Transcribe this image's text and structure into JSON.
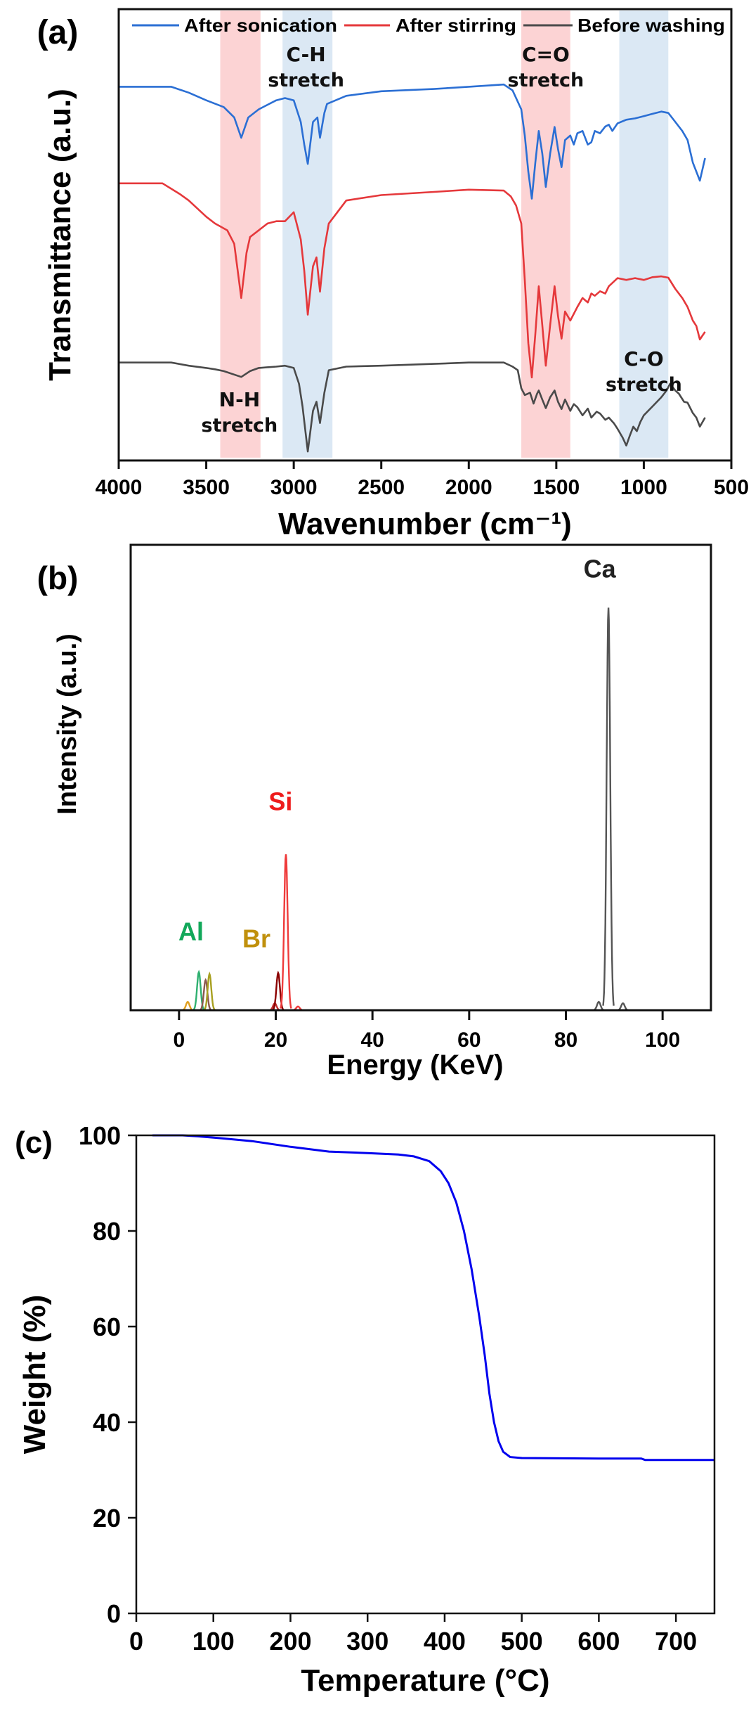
{
  "chart_data": [
    {
      "panel_label": "(a)",
      "type": "line",
      "xlabel": "Wavenumber (cm⁻¹)",
      "ylabel": "Transmittance (a.u.)",
      "xlim": [
        4000,
        500
      ],
      "x_reversed": true,
      "ylim": [
        0,
        100
      ],
      "xticks": [
        4000,
        3500,
        3000,
        2500,
        2000,
        1500,
        1000,
        500
      ],
      "yticks_shown": false,
      "legend_placement": "top",
      "series": [
        {
          "name": "After sonication",
          "color": "#2b6fd4",
          "points": [
            [
              4000,
              82.8
            ],
            [
              3700,
              82.8
            ],
            [
              3600,
              81.5
            ],
            [
              3500,
              79.8
            ],
            [
              3400,
              78.3
            ],
            [
              3340,
              76
            ],
            [
              3300,
              71.5
            ],
            [
              3260,
              76
            ],
            [
              3200,
              77.8
            ],
            [
              3100,
              79.8
            ],
            [
              3050,
              80.3
            ],
            [
              3000,
              79.8
            ],
            [
              2960,
              75
            ],
            [
              2940,
              70
            ],
            [
              2920,
              65.7
            ],
            [
              2890,
              75
            ],
            [
              2865,
              76
            ],
            [
              2850,
              71.5
            ],
            [
              2825,
              77
            ],
            [
              2810,
              79
            ],
            [
              2700,
              80.8
            ],
            [
              2500,
              81.8
            ],
            [
              2200,
              82.3
            ],
            [
              2000,
              82.8
            ],
            [
              1800,
              83.3
            ],
            [
              1750,
              82
            ],
            [
              1700,
              77.8
            ],
            [
              1680,
              72
            ],
            [
              1660,
              64
            ],
            [
              1640,
              58
            ],
            [
              1620,
              66
            ],
            [
              1600,
              73
            ],
            [
              1580,
              68
            ],
            [
              1560,
              60.6
            ],
            [
              1535,
              68
            ],
            [
              1510,
              73.9
            ],
            [
              1490,
              69
            ],
            [
              1470,
              65
            ],
            [
              1450,
              71
            ],
            [
              1420,
              72
            ],
            [
              1400,
              70
            ],
            [
              1380,
              72.5
            ],
            [
              1350,
              73
            ],
            [
              1320,
              70
            ],
            [
              1300,
              70.5
            ],
            [
              1280,
              73
            ],
            [
              1250,
              72.5
            ],
            [
              1220,
              74
            ],
            [
              1200,
              74.4
            ],
            [
              1180,
              73
            ],
            [
              1150,
              74.7
            ],
            [
              1100,
              75.5
            ],
            [
              1050,
              75.8
            ],
            [
              1000,
              76.3
            ],
            [
              950,
              76.8
            ],
            [
              900,
              77.3
            ],
            [
              860,
              77
            ],
            [
              820,
              75
            ],
            [
              780,
              73
            ],
            [
              750,
              71
            ],
            [
              720,
              66
            ],
            [
              700,
              64
            ],
            [
              680,
              62
            ],
            [
              650,
              67
            ]
          ]
        },
        {
          "name": "After stirring",
          "color": "#e5383b",
          "points": [
            [
              4000,
              61.4
            ],
            [
              3750,
              61.4
            ],
            [
              3650,
              59
            ],
            [
              3600,
              57.6
            ],
            [
              3500,
              54
            ],
            [
              3450,
              52.5
            ],
            [
              3380,
              51
            ],
            [
              3340,
              48
            ],
            [
              3300,
              36
            ],
            [
              3270,
              46
            ],
            [
              3250,
              49.5
            ],
            [
              3150,
              52.5
            ],
            [
              3100,
              53
            ],
            [
              3050,
              53
            ],
            [
              3000,
              55
            ],
            [
              2960,
              49
            ],
            [
              2940,
              42
            ],
            [
              2920,
              32.3
            ],
            [
              2890,
              43
            ],
            [
              2870,
              45
            ],
            [
              2850,
              37.4
            ],
            [
              2825,
              47
            ],
            [
              2800,
              52.5
            ],
            [
              2700,
              57.6
            ],
            [
              2500,
              58.8
            ],
            [
              2200,
              59.5
            ],
            [
              2000,
              60
            ],
            [
              1800,
              59.8
            ],
            [
              1760,
              58.5
            ],
            [
              1730,
              56.5
            ],
            [
              1700,
              52.5
            ],
            [
              1680,
              40
            ],
            [
              1660,
              26
            ],
            [
              1640,
              18.4
            ],
            [
              1620,
              28
            ],
            [
              1600,
              38.6
            ],
            [
              1580,
              30
            ],
            [
              1560,
              21
            ],
            [
              1535,
              30
            ],
            [
              1510,
              38.6
            ],
            [
              1490,
              32
            ],
            [
              1470,
              27
            ],
            [
              1450,
              33
            ],
            [
              1420,
              31
            ],
            [
              1400,
              32.5
            ],
            [
              1380,
              34
            ],
            [
              1350,
              36
            ],
            [
              1320,
              35
            ],
            [
              1300,
              37
            ],
            [
              1280,
              36.5
            ],
            [
              1250,
              37.5
            ],
            [
              1220,
              37
            ],
            [
              1200,
              38.6
            ],
            [
              1150,
              40.4
            ],
            [
              1100,
              40
            ],
            [
              1050,
              40.4
            ],
            [
              1000,
              40
            ],
            [
              950,
              40.6
            ],
            [
              900,
              40.8
            ],
            [
              860,
              40.5
            ],
            [
              820,
              38
            ],
            [
              780,
              36
            ],
            [
              750,
              34
            ],
            [
              720,
              31
            ],
            [
              700,
              29.8
            ],
            [
              680,
              26.8
            ],
            [
              650,
              28.5
            ]
          ]
        },
        {
          "name": "Before washing",
          "color": "#4a4a4a",
          "points": [
            [
              4000,
              21.7
            ],
            [
              3700,
              21.7
            ],
            [
              3600,
              21
            ],
            [
              3500,
              20.5
            ],
            [
              3450,
              20.2
            ],
            [
              3400,
              19.8
            ],
            [
              3300,
              18.5
            ],
            [
              3250,
              19.8
            ],
            [
              3200,
              20.5
            ],
            [
              3100,
              20.8
            ],
            [
              3050,
              21
            ],
            [
              3000,
              20.5
            ],
            [
              2970,
              17
            ],
            [
              2950,
              12
            ],
            [
              2920,
              2
            ],
            [
              2890,
              11
            ],
            [
              2870,
              13
            ],
            [
              2850,
              8.3
            ],
            [
              2825,
              15
            ],
            [
              2800,
              20
            ],
            [
              2700,
              20.8
            ],
            [
              2500,
              21
            ],
            [
              2200,
              21.4
            ],
            [
              2000,
              21.7
            ],
            [
              1800,
              21.7
            ],
            [
              1750,
              20.8
            ],
            [
              1720,
              20
            ],
            [
              1700,
              16
            ],
            [
              1680,
              14.5
            ],
            [
              1650,
              15
            ],
            [
              1630,
              12.6
            ],
            [
              1610,
              14.8
            ],
            [
              1600,
              15.5
            ],
            [
              1580,
              13.5
            ],
            [
              1560,
              11.6
            ],
            [
              1535,
              14
            ],
            [
              1510,
              15.5
            ],
            [
              1490,
              13
            ],
            [
              1470,
              11.4
            ],
            [
              1450,
              13.5
            ],
            [
              1420,
              11
            ],
            [
              1400,
              12.5
            ],
            [
              1380,
              11.8
            ],
            [
              1350,
              10
            ],
            [
              1320,
              11.5
            ],
            [
              1300,
              9.5
            ],
            [
              1270,
              10.8
            ],
            [
              1250,
              10.4
            ],
            [
              1220,
              9
            ],
            [
              1200,
              9.5
            ],
            [
              1170,
              8.2
            ],
            [
              1150,
              7
            ],
            [
              1120,
              5
            ],
            [
              1100,
              3.3
            ],
            [
              1080,
              5.5
            ],
            [
              1060,
              7.5
            ],
            [
              1040,
              6.5
            ],
            [
              1020,
              8.5
            ],
            [
              1000,
              10
            ],
            [
              950,
              12
            ],
            [
              900,
              14
            ],
            [
              870,
              15.5
            ],
            [
              850,
              17
            ],
            [
              820,
              15.5
            ],
            [
              800,
              14.8
            ],
            [
              770,
              13
            ],
            [
              750,
              12.8
            ],
            [
              720,
              10.5
            ],
            [
              700,
              9.5
            ],
            [
              680,
              7.5
            ],
            [
              650,
              9.5
            ]
          ]
        }
      ],
      "shaded_bands": [
        {
          "range": [
            3420,
            3190
          ],
          "color": "#fcd3d4"
        },
        {
          "range": [
            3064,
            2779
          ],
          "color": "#dbe8f4"
        },
        {
          "range": [
            1700,
            1420
          ],
          "color": "#fcd3d4"
        },
        {
          "range": [
            1140,
            860
          ],
          "color": "#dbe8f4"
        }
      ],
      "annotations": [
        {
          "line1": "C-H",
          "line2": "stretch",
          "x": 2930,
          "y": 88.5
        },
        {
          "line1": "C=O",
          "line2": "stretch",
          "x": 1560,
          "y": 88.5
        },
        {
          "line1": "N-H",
          "line2": "stretch",
          "x": 3310,
          "y": 12
        },
        {
          "line1": "C-O",
          "line2": "stretch",
          "x": 1000,
          "y": 21
        }
      ]
    },
    {
      "panel_label": "(b)",
      "type": "line",
      "xlabel": "Energy (KeV)",
      "ylabel": "Intensity (a.u.)",
      "xlim": [
        -10,
        110
      ],
      "ylim": [
        0,
        100
      ],
      "xticks": [
        0,
        20,
        40,
        60,
        80,
        100
      ],
      "yticks_shown": false,
      "peaks": [
        {
          "energy": 1.8,
          "intensity": 1.8,
          "color": "#e0a020"
        },
        {
          "energy": 4.1,
          "intensity": 8.2,
          "color": "#2fb070"
        },
        {
          "energy": 5.5,
          "intensity": 6.5,
          "color": "#8a5a50"
        },
        {
          "energy": 6.3,
          "intensity": 7.8,
          "color": "#a8a020"
        },
        {
          "energy": 19.8,
          "intensity": 1.5,
          "color": "#c03030"
        },
        {
          "energy": 20.5,
          "intensity": 8.0,
          "color": "#8b0000"
        },
        {
          "energy": 22.1,
          "intensity": 33.5,
          "color": "#ef3b3b"
        },
        {
          "energy": 24.6,
          "intensity": 0.8,
          "color": "#ef3b3b"
        },
        {
          "energy": 86.8,
          "intensity": 1.8,
          "color": "#555555"
        },
        {
          "energy": 88.8,
          "intensity": 86.5,
          "color": "#555555"
        },
        {
          "energy": 91.8,
          "intensity": 1.5,
          "color": "#555555"
        }
      ],
      "annotations": [
        {
          "text": "Ca",
          "x": 87,
          "y": 93,
          "color": "#222222"
        },
        {
          "text": "Si",
          "x": 21,
          "y": 43,
          "color": "#ee1c1c"
        },
        {
          "text": "Al",
          "x": 2.5,
          "y": 15,
          "color": "#12a85a"
        },
        {
          "text": "Br",
          "x": 16,
          "y": 13.5,
          "color": "#c0900c"
        }
      ]
    },
    {
      "panel_label": "(c)",
      "type": "line",
      "xlabel": "Temperature (°C)",
      "ylabel": "Weight (%)",
      "xlim": [
        0,
        750
      ],
      "ylim": [
        0,
        100
      ],
      "xticks": [
        0,
        100,
        200,
        300,
        400,
        500,
        600,
        700
      ],
      "yticks": [
        0,
        20,
        40,
        60,
        80,
        100
      ],
      "series": [
        {
          "color": "#0000ee",
          "points": [
            [
              21,
              100
            ],
            [
              60,
              100
            ],
            [
              80,
              99.8
            ],
            [
              110,
              99.4
            ],
            [
              150,
              98.8
            ],
            [
              200,
              97.6
            ],
            [
              250,
              96.6
            ],
            [
              300,
              96.3
            ],
            [
              340,
              96
            ],
            [
              360,
              95.6
            ],
            [
              380,
              94.6
            ],
            [
              395,
              92.5
            ],
            [
              405,
              90
            ],
            [
              415,
              86
            ],
            [
              425,
              80
            ],
            [
              435,
              72
            ],
            [
              445,
              62
            ],
            [
              452,
              54
            ],
            [
              458,
              46
            ],
            [
              464,
              40
            ],
            [
              470,
              36
            ],
            [
              476,
              33.8
            ],
            [
              485,
              32.7
            ],
            [
              500,
              32.5
            ],
            [
              600,
              32.4
            ],
            [
              655,
              32.4
            ],
            [
              660,
              32.1
            ],
            [
              750,
              32.1
            ]
          ]
        }
      ]
    }
  ]
}
